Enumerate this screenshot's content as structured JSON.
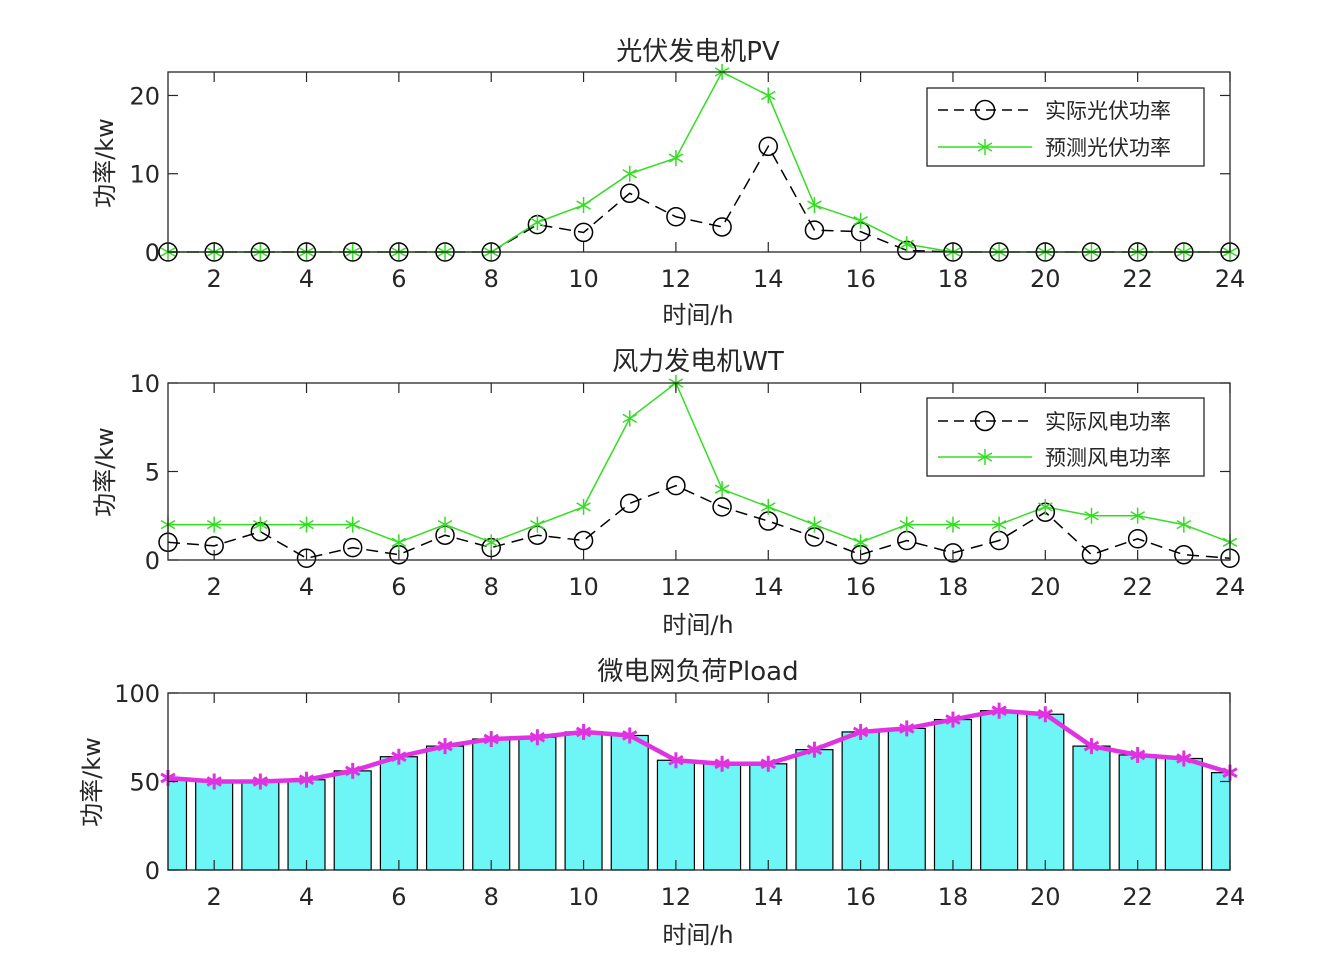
{
  "chart_data": [
    {
      "type": "line",
      "title": "光伏发电机PV",
      "xlabel": "时间/h",
      "ylabel": "功率/kw",
      "xlim": [
        1,
        24
      ],
      "ylim": [
        0,
        23
      ],
      "xticks": [
        2,
        4,
        6,
        8,
        10,
        12,
        14,
        16,
        18,
        20,
        22,
        24
      ],
      "yticks": [
        0,
        10,
        20
      ],
      "grid": false,
      "legend_position": "top-right",
      "x": [
        1,
        2,
        3,
        4,
        5,
        6,
        7,
        8,
        9,
        10,
        11,
        12,
        13,
        14,
        15,
        16,
        17,
        18,
        19,
        20,
        21,
        22,
        23,
        24
      ],
      "series": [
        {
          "name": "实际光伏功率",
          "color": "#000000",
          "line_style": "dashed",
          "marker": "circle",
          "values": [
            0,
            0,
            0,
            0,
            0,
            0,
            0,
            0,
            3.5,
            2.5,
            7.5,
            4.5,
            3.2,
            13.5,
            2.8,
            2.6,
            0.2,
            0,
            0,
            0,
            0,
            0,
            0,
            0
          ]
        },
        {
          "name": "预测光伏功率",
          "color": "#33dd22",
          "line_style": "solid",
          "marker": "asterisk",
          "values": [
            0,
            0,
            0,
            0,
            0,
            0,
            0,
            0,
            3.8,
            6,
            10,
            12,
            23,
            20,
            6,
            4,
            1,
            0,
            0,
            0,
            0,
            0,
            0,
            0
          ]
        }
      ]
    },
    {
      "type": "line",
      "title": "风力发电机WT",
      "xlabel": "时间/h",
      "ylabel": "功率/kw",
      "xlim": [
        1,
        24
      ],
      "ylim": [
        0,
        10
      ],
      "xticks": [
        2,
        4,
        6,
        8,
        10,
        12,
        14,
        16,
        18,
        20,
        22,
        24
      ],
      "yticks": [
        0,
        5,
        10
      ],
      "grid": false,
      "legend_position": "top-right",
      "x": [
        1,
        2,
        3,
        4,
        5,
        6,
        7,
        8,
        9,
        10,
        11,
        12,
        13,
        14,
        15,
        16,
        17,
        18,
        19,
        20,
        21,
        22,
        23,
        24
      ],
      "series": [
        {
          "name": "实际风电功率",
          "color": "#000000",
          "line_style": "dashed",
          "marker": "circle",
          "values": [
            1.0,
            0.8,
            1.6,
            0.1,
            0.7,
            0.3,
            1.4,
            0.7,
            1.4,
            1.1,
            3.2,
            4.2,
            3.0,
            2.2,
            1.3,
            0.3,
            1.1,
            0.4,
            1.1,
            2.7,
            0.3,
            1.2,
            0.3,
            0.1
          ]
        },
        {
          "name": "预测风电功率",
          "color": "#33dd22",
          "line_style": "solid",
          "marker": "asterisk",
          "values": [
            2,
            2,
            2,
            2,
            2,
            1,
            2,
            1,
            2,
            3,
            8,
            10,
            4,
            3,
            2,
            1,
            2,
            2,
            2,
            3,
            2.5,
            2.5,
            2,
            1
          ]
        }
      ]
    },
    {
      "type": "bar",
      "title": "微电网负荷Pload",
      "xlabel": "时间/h",
      "ylabel": "功率/kw",
      "xlim": [
        1,
        24
      ],
      "ylim": [
        0,
        100
      ],
      "xticks": [
        2,
        4,
        6,
        8,
        10,
        12,
        14,
        16,
        18,
        20,
        22,
        24
      ],
      "yticks": [
        0,
        50,
        100
      ],
      "grid": false,
      "x": [
        1,
        2,
        3,
        4,
        5,
        6,
        7,
        8,
        9,
        10,
        11,
        12,
        13,
        14,
        15,
        16,
        17,
        18,
        19,
        20,
        21,
        22,
        23,
        24
      ],
      "bar_color": "#6ef5f5",
      "line_color": "#e032e0",
      "values": [
        52,
        50,
        50,
        51,
        56,
        64,
        70,
        74,
        75,
        78,
        76,
        62,
        60,
        60,
        68,
        78,
        80,
        85,
        90,
        88,
        70,
        65,
        63,
        55
      ]
    }
  ]
}
